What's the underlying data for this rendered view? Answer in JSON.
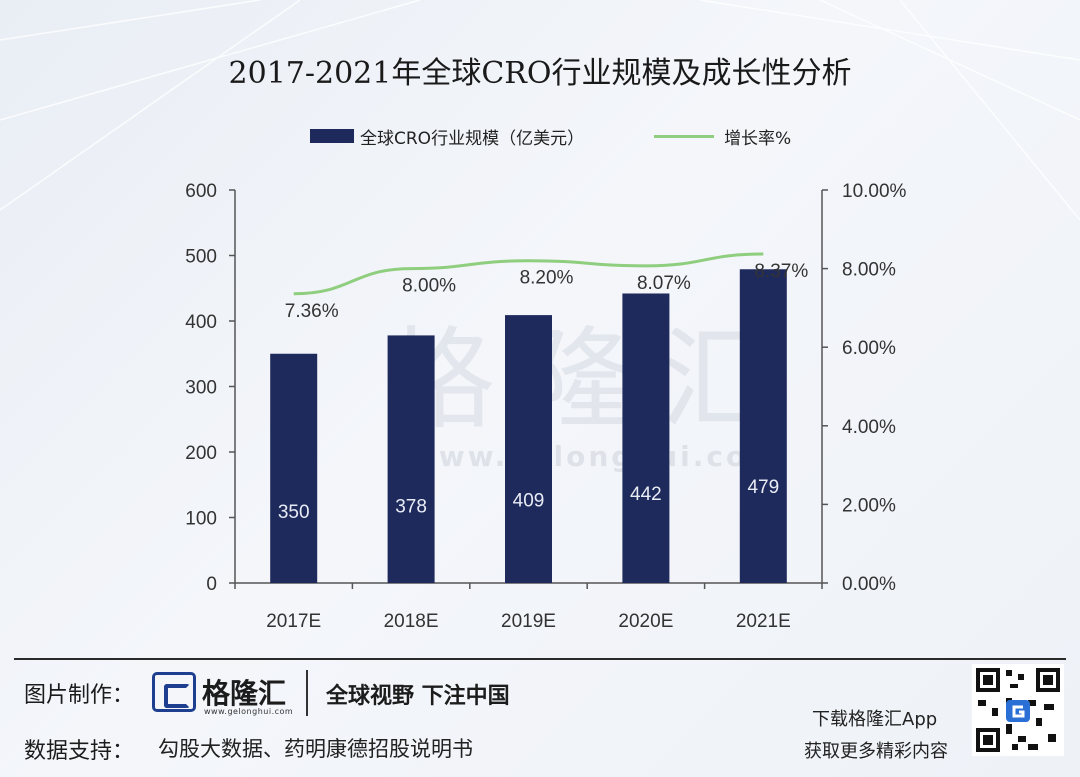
{
  "title": "2017-2021年全球CRO行业规模及成长性分析",
  "legend": {
    "bar_label": "全球CRO行业规模（亿美元）",
    "line_label": "增长率%"
  },
  "watermark": {
    "text": "格隆汇",
    "url": "www.gelonghui.com"
  },
  "footer": {
    "credit_label": "图片制作：",
    "logo_name": "格隆汇",
    "logo_url": "www.gelonghui.com",
    "slogan": "全球视野 下注中国",
    "data_label": "数据支持：",
    "source": "勾股大数据、药明康德招股说明书",
    "app_line1": "下载格隆汇App",
    "app_line2": "获取更多精彩内容"
  },
  "colors": {
    "bar": "#1f2a5c",
    "line": "#8fce7e",
    "axis": "#555555"
  },
  "chart_data": {
    "type": "bar",
    "title": "2017-2021年全球CRO行业规模及成长性分析",
    "categories": [
      "2017E",
      "2018E",
      "2019E",
      "2020E",
      "2021E"
    ],
    "series": [
      {
        "name": "全球CRO行业规模（亿美元）",
        "type": "bar",
        "axis": "left",
        "values": [
          350,
          378,
          409,
          442,
          479
        ],
        "labels": [
          "350",
          "378",
          "409",
          "442",
          "479"
        ]
      },
      {
        "name": "增长率%",
        "type": "line",
        "axis": "right",
        "values": [
          7.36,
          8.0,
          8.2,
          8.07,
          8.37
        ],
        "labels": [
          "7.36%",
          "8.00%",
          "8.20%",
          "8.07%",
          "8.37%"
        ]
      }
    ],
    "y_left": {
      "lim": [
        0,
        600
      ],
      "ticks": [
        "0",
        "100",
        "200",
        "300",
        "400",
        "500",
        "600"
      ]
    },
    "y_right": {
      "lim": [
        0,
        10
      ],
      "ticks": [
        "0.00%",
        "2.00%",
        "4.00%",
        "6.00%",
        "8.00%",
        "10.00%"
      ]
    },
    "grid": false,
    "legend_position": "top"
  }
}
